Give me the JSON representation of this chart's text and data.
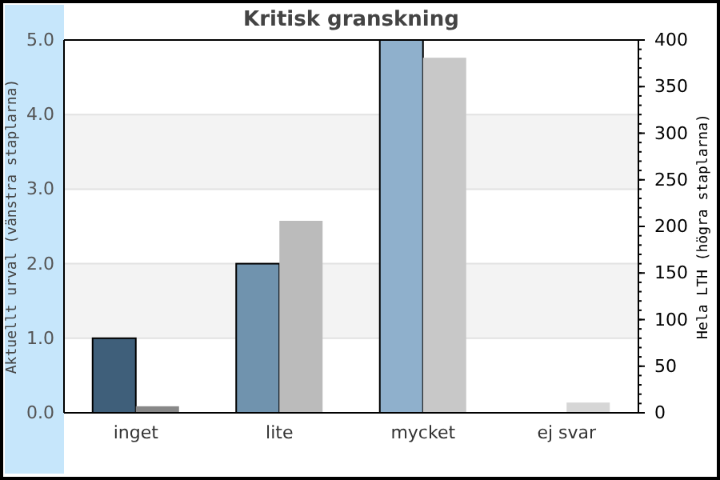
{
  "chart_data": {
    "type": "bar",
    "title": "Kritisk granskning",
    "categories": [
      "inget",
      "lite",
      "mycket",
      "ej svar"
    ],
    "series": [
      {
        "colors": [
          "#3f5f7a",
          "#7093ae",
          "#8fb0cc",
          null
        ],
        "values": [
          1.0,
          2.0,
          5.0,
          null
        ]
      },
      {
        "colors": [
          "#888888",
          "#bbbbbb",
          "#c8c8c8",
          "#d6d6d6"
        ],
        "values": [
          7,
          206,
          381,
          11
        ],
        "axis": "y2"
      }
    ],
    "ylabel": "Aktuellt urval (vänstra staplarna)",
    "y2label": "Hela LTH (högra staplarna)",
    "ylim": [
      0,
      5
    ],
    "yticks": [
      {
        "value": 0,
        "label": "0.0"
      },
      {
        "value": 1,
        "label": "1.0"
      },
      {
        "value": 2,
        "label": "2.0"
      },
      {
        "value": 3,
        "label": "3.0"
      },
      {
        "value": 4,
        "label": "4.0"
      },
      {
        "value": 5,
        "label": "5.0"
      }
    ],
    "y2lim": [
      0,
      400
    ],
    "y2ticks": [
      0,
      50,
      100,
      150,
      200,
      250,
      300,
      350,
      400
    ],
    "bands": [
      {
        "axis": "y",
        "from": 1,
        "to": 2,
        "color": "#f3f3f3"
      },
      {
        "axis": "y",
        "from": 3,
        "to": 4,
        "color": "#f3f3f3"
      }
    ],
    "grid": "y"
  }
}
